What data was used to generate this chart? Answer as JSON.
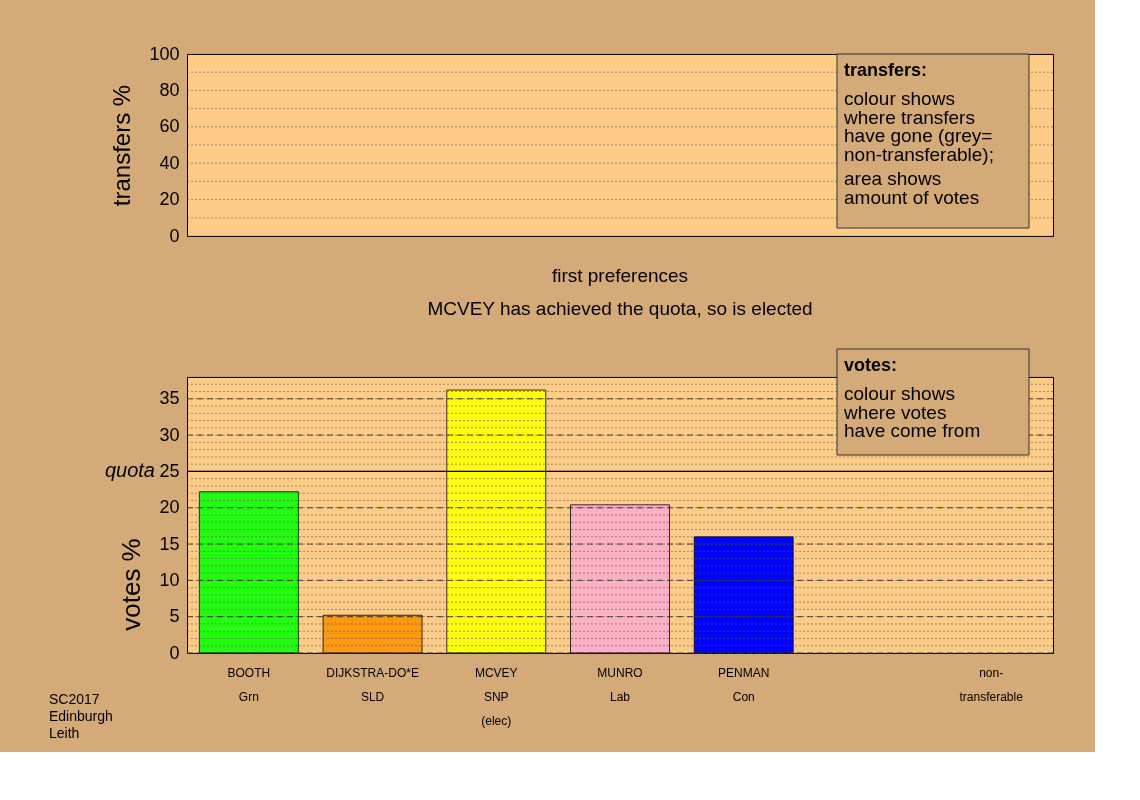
{
  "chart_data": [
    {
      "type": "bar",
      "ylabel": "transfers %",
      "values": [
        null,
        null,
        null,
        null,
        null,
        null,
        null
      ],
      "ylim": [
        0,
        100
      ],
      "yticks": [
        0,
        20,
        40,
        60,
        80,
        100
      ],
      "grid": "y",
      "tick_labels": "y",
      "annotations": [
        "transfers:\ncolour shows\nwhere transfers\nhave gone (grey=\nnon-transferable);\n\narea shows\namount of votes"
      ]
    },
    {
      "type": "bar",
      "title": "first preferences",
      "subtitle": "MCVEY has achieved the quota, so is elected",
      "ylabel": "votes %",
      "categories": [
        "BOOTH\nGrn",
        "DIJKSTRA-DO*E\nSLD",
        "MCVEY\nSNP\n(elec)",
        "MUNRO\nLab",
        "PENMAN\nCon",
        null,
        "non-\ntransferable"
      ],
      "values": [
        22.2,
        5.2,
        36.2,
        20.4,
        16.0,
        null,
        null
      ],
      "colors": [
        "#22ff11",
        "#ff9911",
        "#ffff11",
        "#ffb0c4",
        "#0000ff",
        "#888888",
        "#888888"
      ],
      "ylim": [
        0,
        38
      ],
      "yticks": [
        0,
        5,
        10,
        15,
        20,
        25,
        30,
        35
      ],
      "grid": "y",
      "ref_lines": [
        {
          "axis": "y",
          "value": 25,
          "label": "quota"
        }
      ],
      "annotations": [
        "votes:\ncolour shows\nwhere votes\nhave come from",
        "SC2017\nEdinburgh\nLeith"
      ]
    }
  ]
}
